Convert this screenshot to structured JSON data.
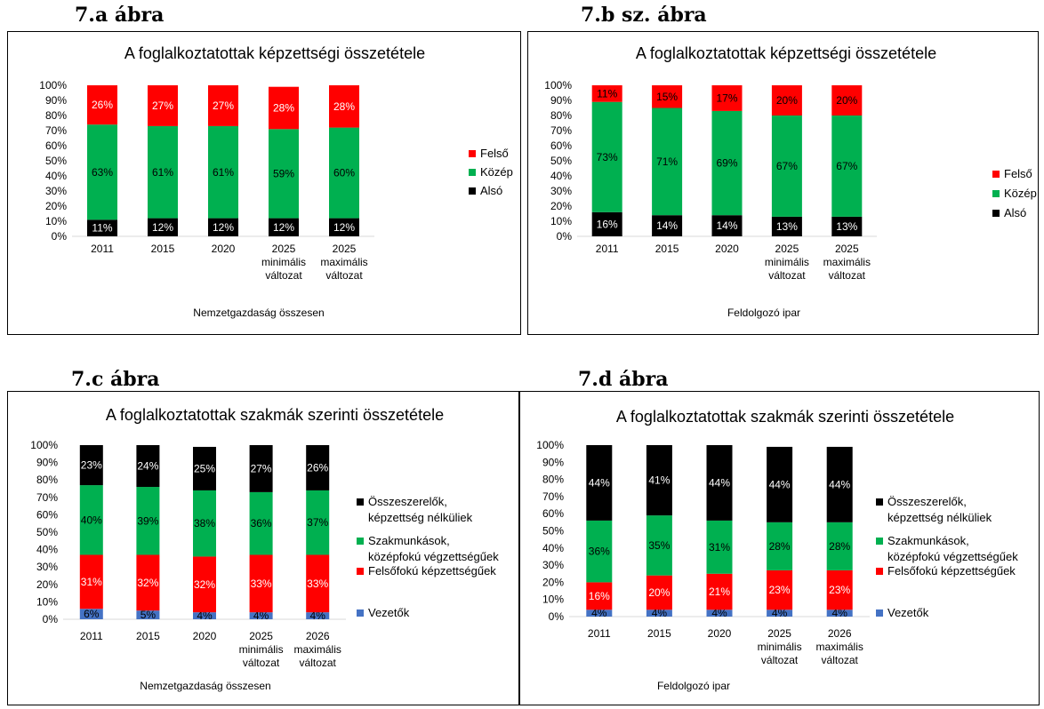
{
  "figure_labels": [
    "7.a ábra",
    "7.b sz. ábra",
    "7.c ábra",
    "7.d ábra"
  ],
  "colors": {
    "felso": "#ff0000",
    "kozep": "#00b050",
    "also": "#000000",
    "vezetok": "#4472c4"
  },
  "chart_data": [
    {
      "type": "bar",
      "stacked": true,
      "title": "A foglalkoztatottak képzettségi összetétele",
      "xlabel": "Nemzetgazdaság összesen",
      "categories": [
        "2011",
        "2015",
        "2020",
        "2025 minimális változat",
        "2025 maximális változat"
      ],
      "y_ticks": [
        "0%",
        "10%",
        "20%",
        "30%",
        "40%",
        "50%",
        "60%",
        "70%",
        "80%",
        "90%",
        "100%"
      ],
      "ylim": [
        0,
        100
      ],
      "legend_position": "right",
      "series": [
        {
          "name": "Alsó",
          "color": "#000000",
          "label_color": "#ffffff",
          "values": [
            11,
            12,
            12,
            12,
            12
          ],
          "labels": [
            "11%",
            "12%",
            "12%",
            "12%",
            "12%"
          ]
        },
        {
          "name": "Közép",
          "color": "#00b050",
          "label_color": "#000000",
          "values": [
            63,
            61,
            61,
            59,
            60
          ],
          "labels": [
            "63%",
            "61%",
            "61%",
            "59%",
            "60%"
          ]
        },
        {
          "name": "Felső",
          "color": "#ff0000",
          "label_color": "#ffffff",
          "values": [
            26,
            27,
            27,
            28,
            28
          ],
          "labels": [
            "26%",
            "27%",
            "27%",
            "28%",
            "28%"
          ]
        }
      ],
      "legend": [
        "Felső",
        "Közép",
        "Alsó"
      ]
    },
    {
      "type": "bar",
      "stacked": true,
      "title": "A foglalkoztatottak képzettségi összetétele",
      "xlabel": "Feldolgozó ipar",
      "categories": [
        "2011",
        "2015",
        "2020",
        "2025 minimális változat",
        "2025 maximális változat"
      ],
      "y_ticks": [
        "0%",
        "10%",
        "20%",
        "30%",
        "40%",
        "50%",
        "60%",
        "70%",
        "80%",
        "90%",
        "100%"
      ],
      "ylim": [
        0,
        100
      ],
      "legend_position": "right",
      "series": [
        {
          "name": "Alsó",
          "color": "#000000",
          "label_color": "#ffffff",
          "values": [
            16,
            14,
            14,
            13,
            13
          ],
          "labels": [
            "16%",
            "14%",
            "14%",
            "13%",
            "13%"
          ]
        },
        {
          "name": "Közép",
          "color": "#00b050",
          "label_color": "#000000",
          "values": [
            73,
            71,
            69,
            67,
            67
          ],
          "labels": [
            "73%",
            "71%",
            "69%",
            "67%",
            "67%"
          ]
        },
        {
          "name": "Felső",
          "color": "#ff0000",
          "label_color": "#000000",
          "values": [
            11,
            15,
            17,
            20,
            20
          ],
          "labels": [
            "11%",
            "15%",
            "17%",
            "20%",
            "20%"
          ]
        }
      ],
      "legend": [
        "Felső",
        "Közép",
        "Alsó"
      ]
    },
    {
      "type": "bar",
      "stacked": true,
      "title": "A foglalkoztatottak szakmák szerinti összetétele",
      "xlabel": "Nemzetgazdaság összesen",
      "categories": [
        "2011",
        "2015",
        "2020",
        "2025 minimális változat",
        "2026 maximális változat"
      ],
      "y_ticks": [
        "0%",
        "10%",
        "20%",
        "30%",
        "40%",
        "50%",
        "60%",
        "70%",
        "80%",
        "90%",
        "100%"
      ],
      "ylim": [
        0,
        100
      ],
      "legend_position": "right",
      "series": [
        {
          "name": "Vezetők",
          "color": "#4472c4",
          "label_color": "#000000",
          "values": [
            6,
            5,
            4,
            4,
            4
          ],
          "labels": [
            "6%",
            "5%",
            "4%",
            "4%",
            "4%"
          ]
        },
        {
          "name": "Felsőfokú képzettségűek",
          "color": "#ff0000",
          "label_color": "#ffffff",
          "values": [
            31,
            32,
            32,
            33,
            33
          ],
          "labels": [
            "31%",
            "32%",
            "32%",
            "33%",
            "33%"
          ]
        },
        {
          "name": "Szakmunkások, középfokú végzettségűek",
          "color": "#00b050",
          "label_color": "#000000",
          "values": [
            40,
            39,
            38,
            36,
            37
          ],
          "labels": [
            "40%",
            "39%",
            "38%",
            "36%",
            "37%"
          ]
        },
        {
          "name": "Összeszerelők, képzettség nélküliek",
          "color": "#000000",
          "label_color": "#ffffff",
          "values": [
            23,
            24,
            25,
            27,
            26
          ],
          "labels": [
            "23%",
            "24%",
            "25%",
            "27%",
            "26%"
          ]
        }
      ],
      "legend": [
        "Összeszerelők, képzettség nélküliek",
        "Szakmunkások, középfokú végzettségűek",
        "Felsőfokú képzettségűek",
        "Vezetők"
      ]
    },
    {
      "type": "bar",
      "stacked": true,
      "title": "A foglalkoztatottak szakmák szerinti összetétele",
      "xlabel": "Feldolgozó ipar",
      "categories": [
        "2011",
        "2015",
        "2020",
        "2025 minimális változat",
        "2026 maximális változat"
      ],
      "y_ticks": [
        "0%",
        "10%",
        "20%",
        "30%",
        "40%",
        "50%",
        "60%",
        "70%",
        "80%",
        "90%",
        "100%"
      ],
      "ylim": [
        0,
        100
      ],
      "legend_position": "right",
      "series": [
        {
          "name": "Vezetők",
          "color": "#4472c4",
          "label_color": "#000000",
          "values": [
            4,
            4,
            4,
            4,
            4
          ],
          "labels": [
            "4%",
            "4%",
            "4%",
            "4%",
            "4%"
          ]
        },
        {
          "name": "Felsőfokú képzettségűek",
          "color": "#ff0000",
          "label_color": "#ffffff",
          "values": [
            16,
            20,
            21,
            23,
            23
          ],
          "labels": [
            "16%",
            "20%",
            "21%",
            "23%",
            "23%"
          ]
        },
        {
          "name": "Szakmunkások, középfokú végzettségűek",
          "color": "#00b050",
          "label_color": "#000000",
          "values": [
            36,
            35,
            31,
            28,
            28
          ],
          "labels": [
            "36%",
            "35%",
            "31%",
            "28%",
            "28%"
          ]
        },
        {
          "name": "Összeszerelők, képzettség nélküliek",
          "color": "#000000",
          "label_color": "#ffffff",
          "values": [
            44,
            41,
            44,
            44,
            44
          ],
          "labels": [
            "44%",
            "41%",
            "44%",
            "44%",
            "44%"
          ]
        }
      ],
      "legend": [
        "Összeszerelők, képzettség nélküliek",
        "Szakmunkások, középfokú végzettségűek",
        "Felsőfokú képzettségűek",
        "Vezetők"
      ]
    }
  ]
}
